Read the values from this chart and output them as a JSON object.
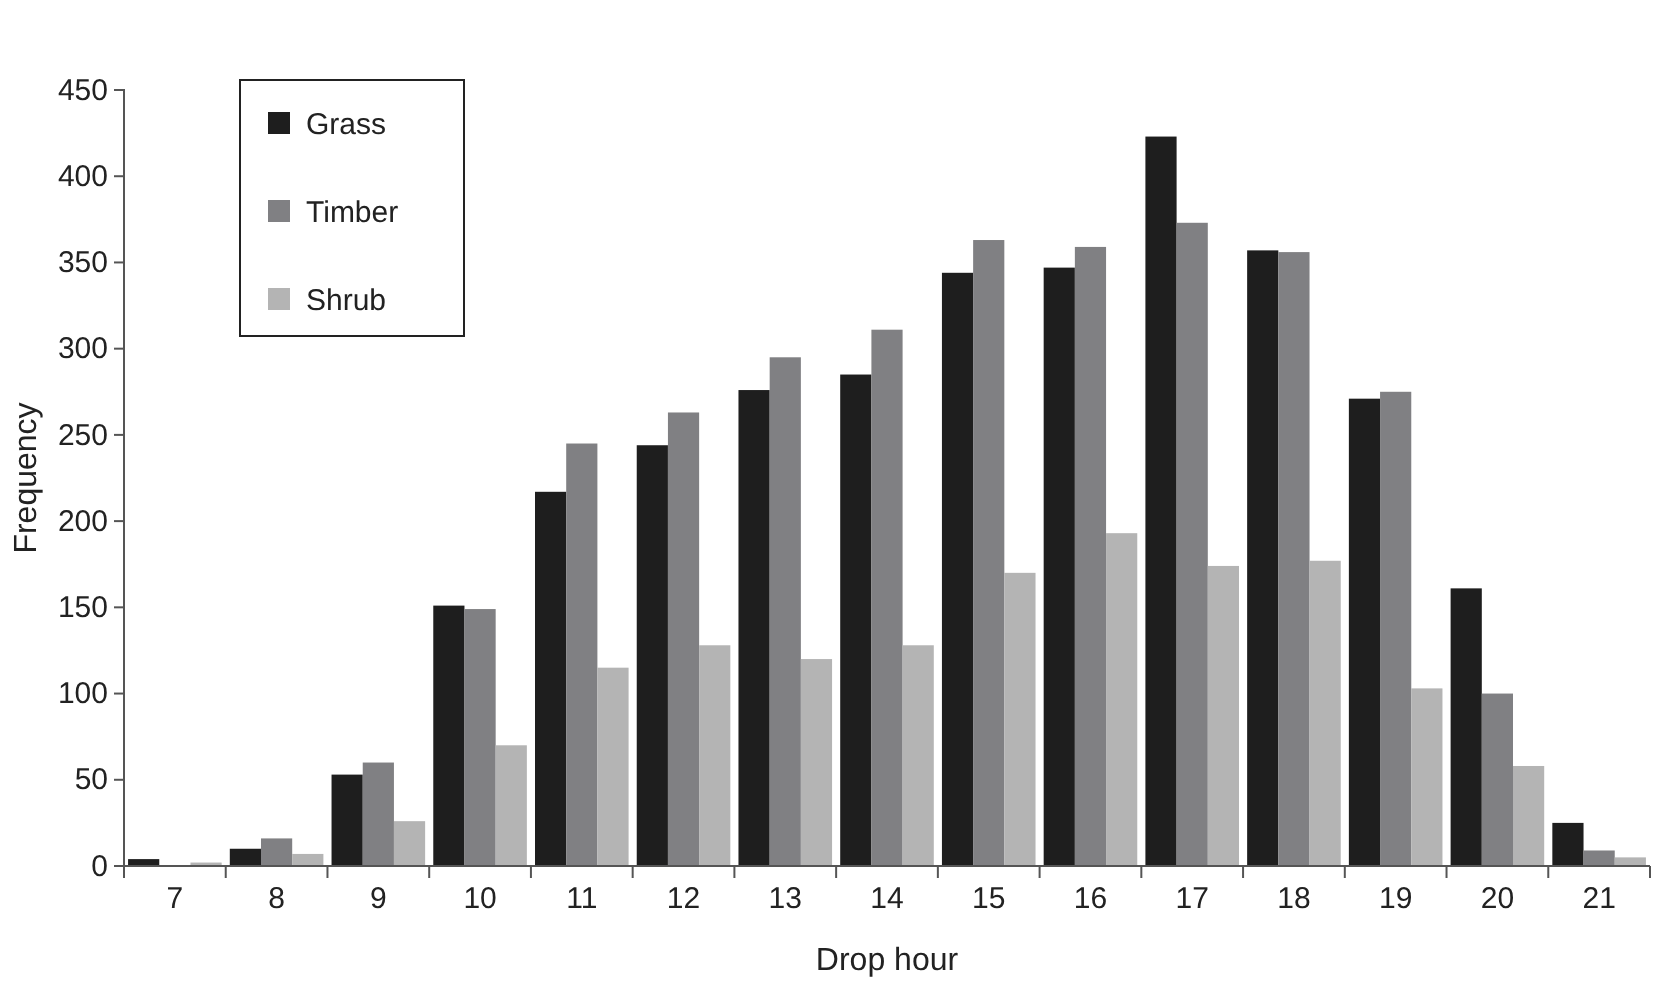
{
  "chart_data": {
    "type": "bar",
    "xlabel": "Drop hour",
    "ylabel": "Frequency",
    "categories": [
      "7",
      "8",
      "9",
      "10",
      "11",
      "12",
      "13",
      "14",
      "15",
      "16",
      "17",
      "18",
      "19",
      "20",
      "21"
    ],
    "series": [
      {
        "name": "Grass",
        "color": "#1e1e1e",
        "values": [
          4,
          10,
          53,
          151,
          217,
          244,
          276,
          285,
          344,
          347,
          423,
          357,
          271,
          161,
          25
        ]
      },
      {
        "name": "Timber",
        "color": "#808083",
        "values": [
          null,
          16,
          60,
          149,
          245,
          263,
          295,
          311,
          363,
          359,
          373,
          356,
          275,
          100,
          9
        ]
      },
      {
        "name": "Shrub",
        "color": "#b4b4b4",
        "values": [
          2,
          7,
          26,
          70,
          115,
          128,
          120,
          128,
          170,
          193,
          174,
          177,
          103,
          58,
          5
        ]
      }
    ],
    "ylim": [
      0,
      450
    ],
    "yticks": [
      0,
      50,
      100,
      150,
      200,
      250,
      300,
      350,
      400,
      450
    ],
    "grid": false,
    "legend": "top left"
  }
}
